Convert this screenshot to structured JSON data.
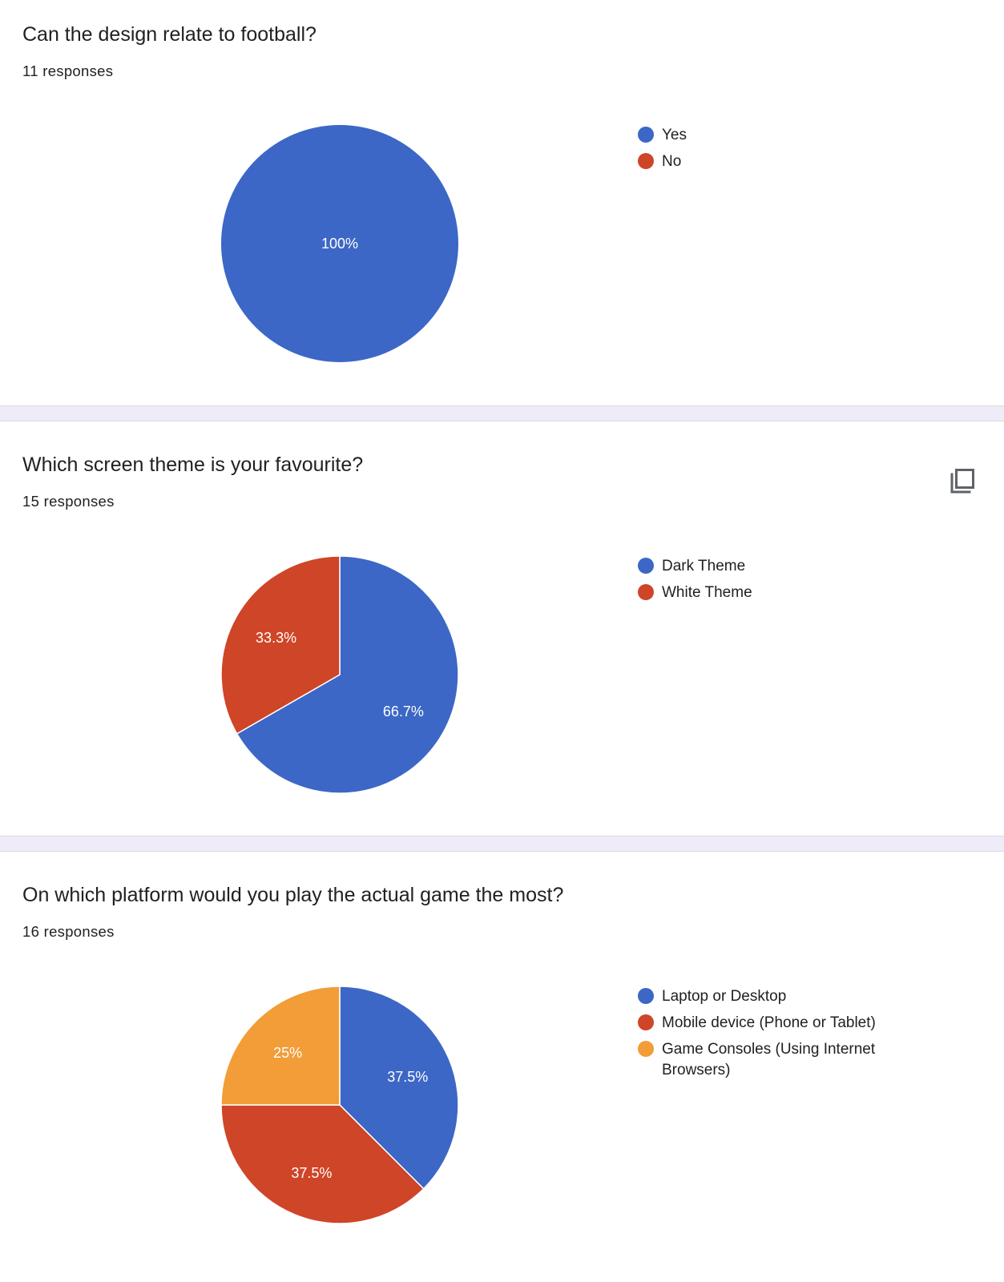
{
  "questions": [
    {
      "title": "Can the design relate to football?",
      "responses": "11 responses",
      "show_copy": false
    },
    {
      "title": "Which screen theme is your favourite?",
      "responses": "15 responses",
      "show_copy": true
    },
    {
      "title": "On which platform would you play the actual game the most?",
      "responses": "16 responses",
      "show_copy": false
    }
  ],
  "copy_icon": "copy-icon",
  "colors": {
    "blue": "#3c67c6",
    "red": "#cf4527",
    "orange": "#f29d38",
    "separator": "#f0ebf8"
  },
  "chart_data": [
    {
      "type": "pie",
      "labels": [
        "Yes",
        "No"
      ],
      "values": [
        100,
        0
      ],
      "value_labels": [
        "100%",
        ""
      ],
      "colors": [
        "#3c67c6",
        "#cf4527"
      ],
      "legend": "right"
    },
    {
      "type": "pie",
      "labels": [
        "Dark Theme",
        "White Theme"
      ],
      "values": [
        66.7,
        33.3
      ],
      "value_labels": [
        "66.7%",
        "33.3%"
      ],
      "colors": [
        "#3c67c6",
        "#cf4527"
      ],
      "legend": "right"
    },
    {
      "type": "pie",
      "labels": [
        "Laptop or Desktop",
        "Mobile device (Phone or Tablet)",
        "Game Consoles (Using Internet Browsers)"
      ],
      "values": [
        37.5,
        37.5,
        25
      ],
      "value_labels": [
        "37.5%",
        "37.5%",
        "25%"
      ],
      "colors": [
        "#3c67c6",
        "#cf4527",
        "#f29d38"
      ],
      "legend": "right"
    }
  ]
}
